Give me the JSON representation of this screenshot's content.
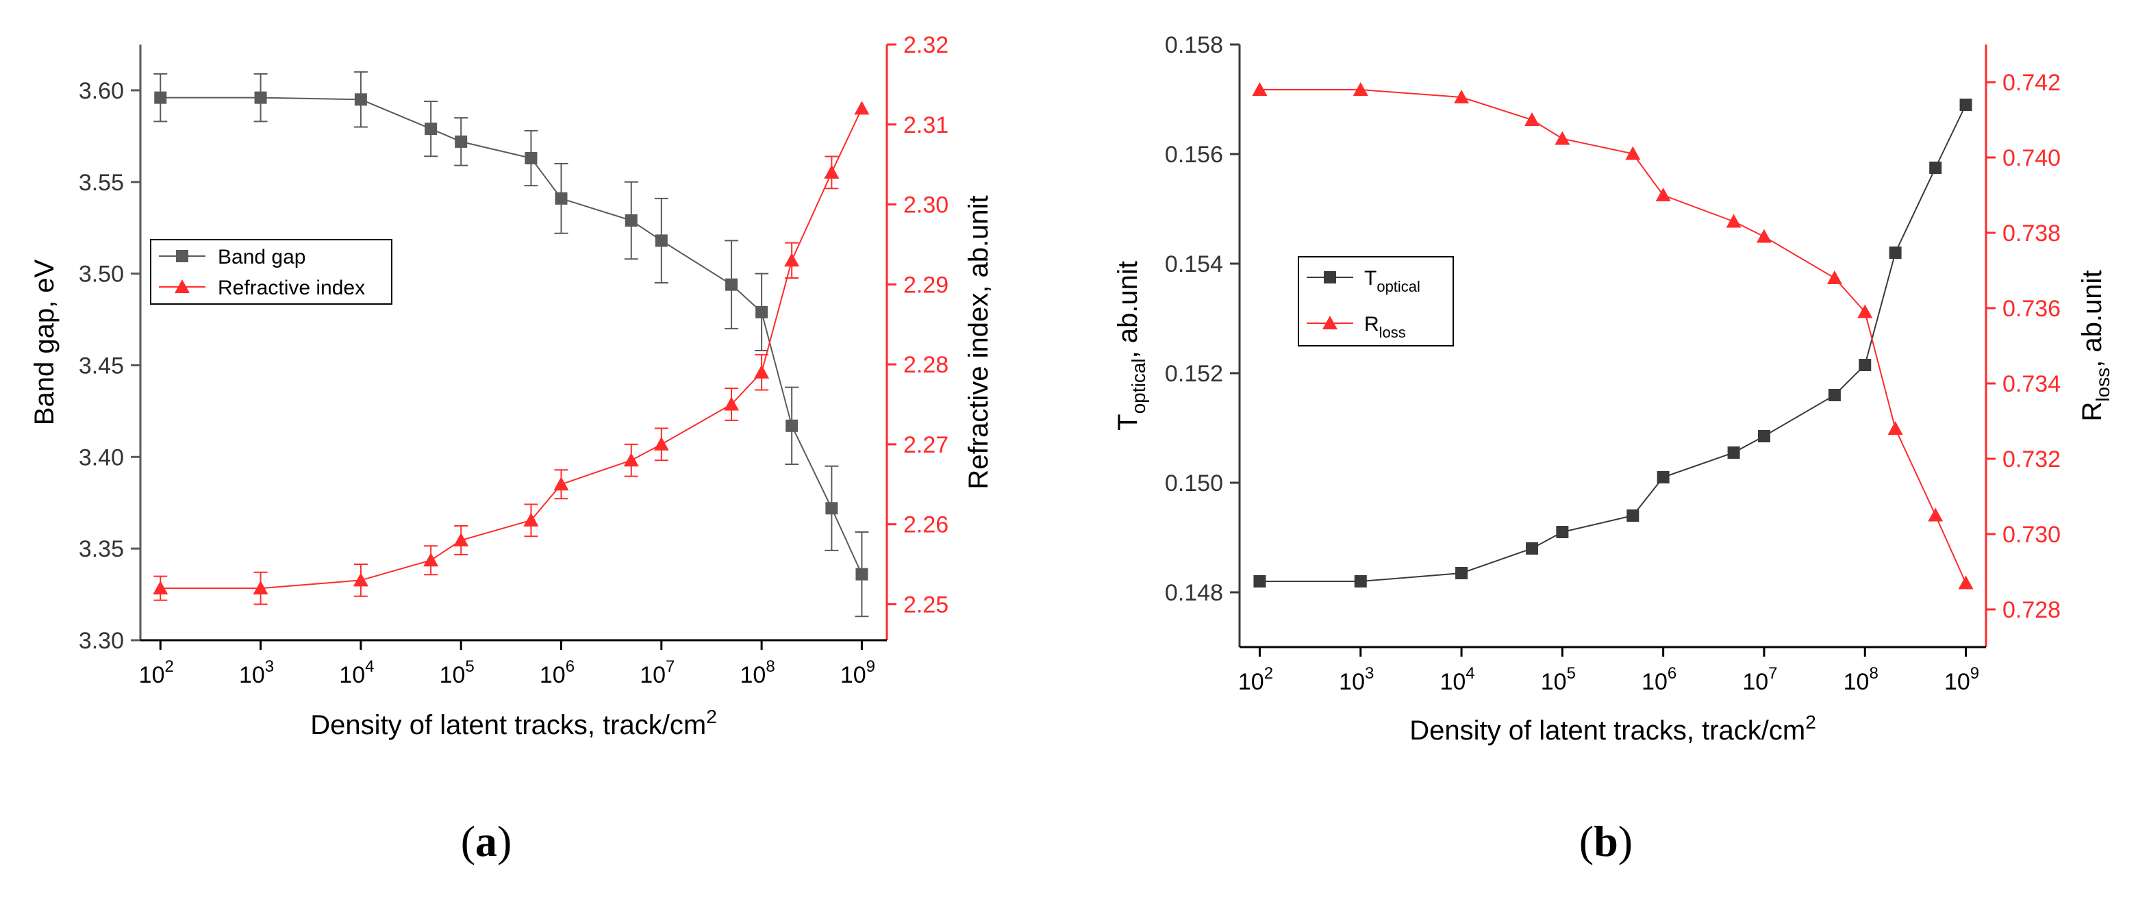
{
  "colors": {
    "gray": "#5a5a5a",
    "dark": "#3a3a3a",
    "red": "#ff2a2a",
    "axis": "#000000"
  },
  "chart_data": [
    {
      "panel": "(a)",
      "type": "line",
      "x_scale": "log",
      "x": [
        100,
        1000,
        10000,
        50000,
        100000,
        500000,
        1000000,
        5000000,
        10000000,
        50000000,
        100000000,
        200000000,
        500000000,
        1000000000
      ],
      "xlim_log10": [
        1.8,
        9.25
      ],
      "x_ticks": [
        {
          "base": "10",
          "exp": "2",
          "log": 2
        },
        {
          "base": "10",
          "exp": "3",
          "log": 3
        },
        {
          "base": "10",
          "exp": "4",
          "log": 4
        },
        {
          "base": "10",
          "exp": "5",
          "log": 5
        },
        {
          "base": "10",
          "exp": "6",
          "log": 6
        },
        {
          "base": "10",
          "exp": "7",
          "log": 7
        },
        {
          "base": "10",
          "exp": "8",
          "log": 8
        },
        {
          "base": "10",
          "exp": "9",
          "log": 9
        }
      ],
      "xlabel": {
        "text": "Density of latent tracks, track/cm",
        "sup": "2"
      },
      "left_axis": {
        "label": "Band gap, eV",
        "ylim": [
          3.3,
          3.625
        ],
        "ticks": [
          "3.30",
          "3.35",
          "3.40",
          "3.45",
          "3.50",
          "3.55",
          "3.60"
        ]
      },
      "right_axis": {
        "label": "Refractive index, ab.unit",
        "ylim": [
          2.2455,
          2.32
        ],
        "ticks": [
          "2.25",
          "2.26",
          "2.27",
          "2.28",
          "2.29",
          "2.30",
          "2.31",
          "2.32"
        ]
      },
      "series": [
        {
          "name": "Band gap",
          "axis": "left",
          "marker": "square",
          "color": "#5a5a5a",
          "values": [
            3.596,
            3.596,
            3.595,
            3.579,
            3.572,
            3.563,
            3.541,
            3.529,
            3.518,
            3.494,
            3.479,
            3.417,
            3.372,
            3.336
          ],
          "errors": [
            0.013,
            0.013,
            0.015,
            0.015,
            0.013,
            0.015,
            0.019,
            0.021,
            0.023,
            0.024,
            0.021,
            0.021,
            0.023,
            0.023
          ]
        },
        {
          "name": "Refractive index",
          "axis": "right",
          "marker": "triangle",
          "color": "#ff2a2a",
          "values": [
            2.252,
            2.252,
            2.253,
            2.2555,
            2.258,
            2.2605,
            2.265,
            2.268,
            2.27,
            2.275,
            2.279,
            2.293,
            2.304,
            2.312
          ],
          "errors": [
            0.0015,
            0.002,
            0.002,
            0.0018,
            0.0018,
            0.002,
            0.0018,
            0.002,
            0.002,
            0.002,
            0.0022,
            0.0022,
            0.002,
            0
          ]
        }
      ]
    },
    {
      "panel": "(b)",
      "type": "line",
      "x_scale": "log",
      "x": [
        100,
        1000,
        10000,
        50000,
        100000,
        500000,
        1000000,
        5000000,
        10000000,
        50000000,
        100000000,
        200000000,
        500000000,
        1000000000
      ],
      "xlim_log10": [
        1.8,
        9.2
      ],
      "x_ticks": [
        {
          "base": "10",
          "exp": "2",
          "log": 2
        },
        {
          "base": "10",
          "exp": "3",
          "log": 3
        },
        {
          "base": "10",
          "exp": "4",
          "log": 4
        },
        {
          "base": "10",
          "exp": "5",
          "log": 5
        },
        {
          "base": "10",
          "exp": "6",
          "log": 6
        },
        {
          "base": "10",
          "exp": "7",
          "log": 7
        },
        {
          "base": "10",
          "exp": "8",
          "log": 8
        },
        {
          "base": "10",
          "exp": "9",
          "log": 9
        }
      ],
      "xlabel": {
        "text": "Density of latent tracks, track/cm",
        "sup": "2"
      },
      "left_axis": {
        "label_main": "T",
        "label_sub": "optical",
        "label_tail": ", ab.unit",
        "ylim": [
          0.147,
          0.158
        ],
        "ticks": [
          "0.148",
          "0.150",
          "0.152",
          "0.154",
          "0.156",
          "0.158"
        ]
      },
      "right_axis": {
        "label_main": "R",
        "label_sub": "loss",
        "label_tail": ", ab.unit",
        "ylim": [
          0.727,
          0.743
        ],
        "ticks": [
          "0.728",
          "0.730",
          "0.732",
          "0.734",
          "0.736",
          "0.738",
          "0.740",
          "0.742"
        ]
      },
      "series": [
        {
          "name_main": "T",
          "name_sub": "optical",
          "axis": "left",
          "marker": "square",
          "color": "#3a3a3a",
          "values": [
            0.1482,
            0.1482,
            0.14835,
            0.1488,
            0.1491,
            0.1494,
            0.1501,
            0.15055,
            0.15085,
            0.1516,
            0.15215,
            0.1542,
            0.15575,
            0.1569
          ]
        },
        {
          "name_main": "R",
          "name_sub": "loss",
          "axis": "right",
          "marker": "triangle",
          "color": "#ff2a2a",
          "values": [
            0.7418,
            0.7418,
            0.7416,
            0.741,
            0.7405,
            0.7401,
            0.739,
            0.7383,
            0.7379,
            0.7368,
            0.7359,
            0.7328,
            0.7305,
            0.7287
          ]
        }
      ]
    }
  ]
}
